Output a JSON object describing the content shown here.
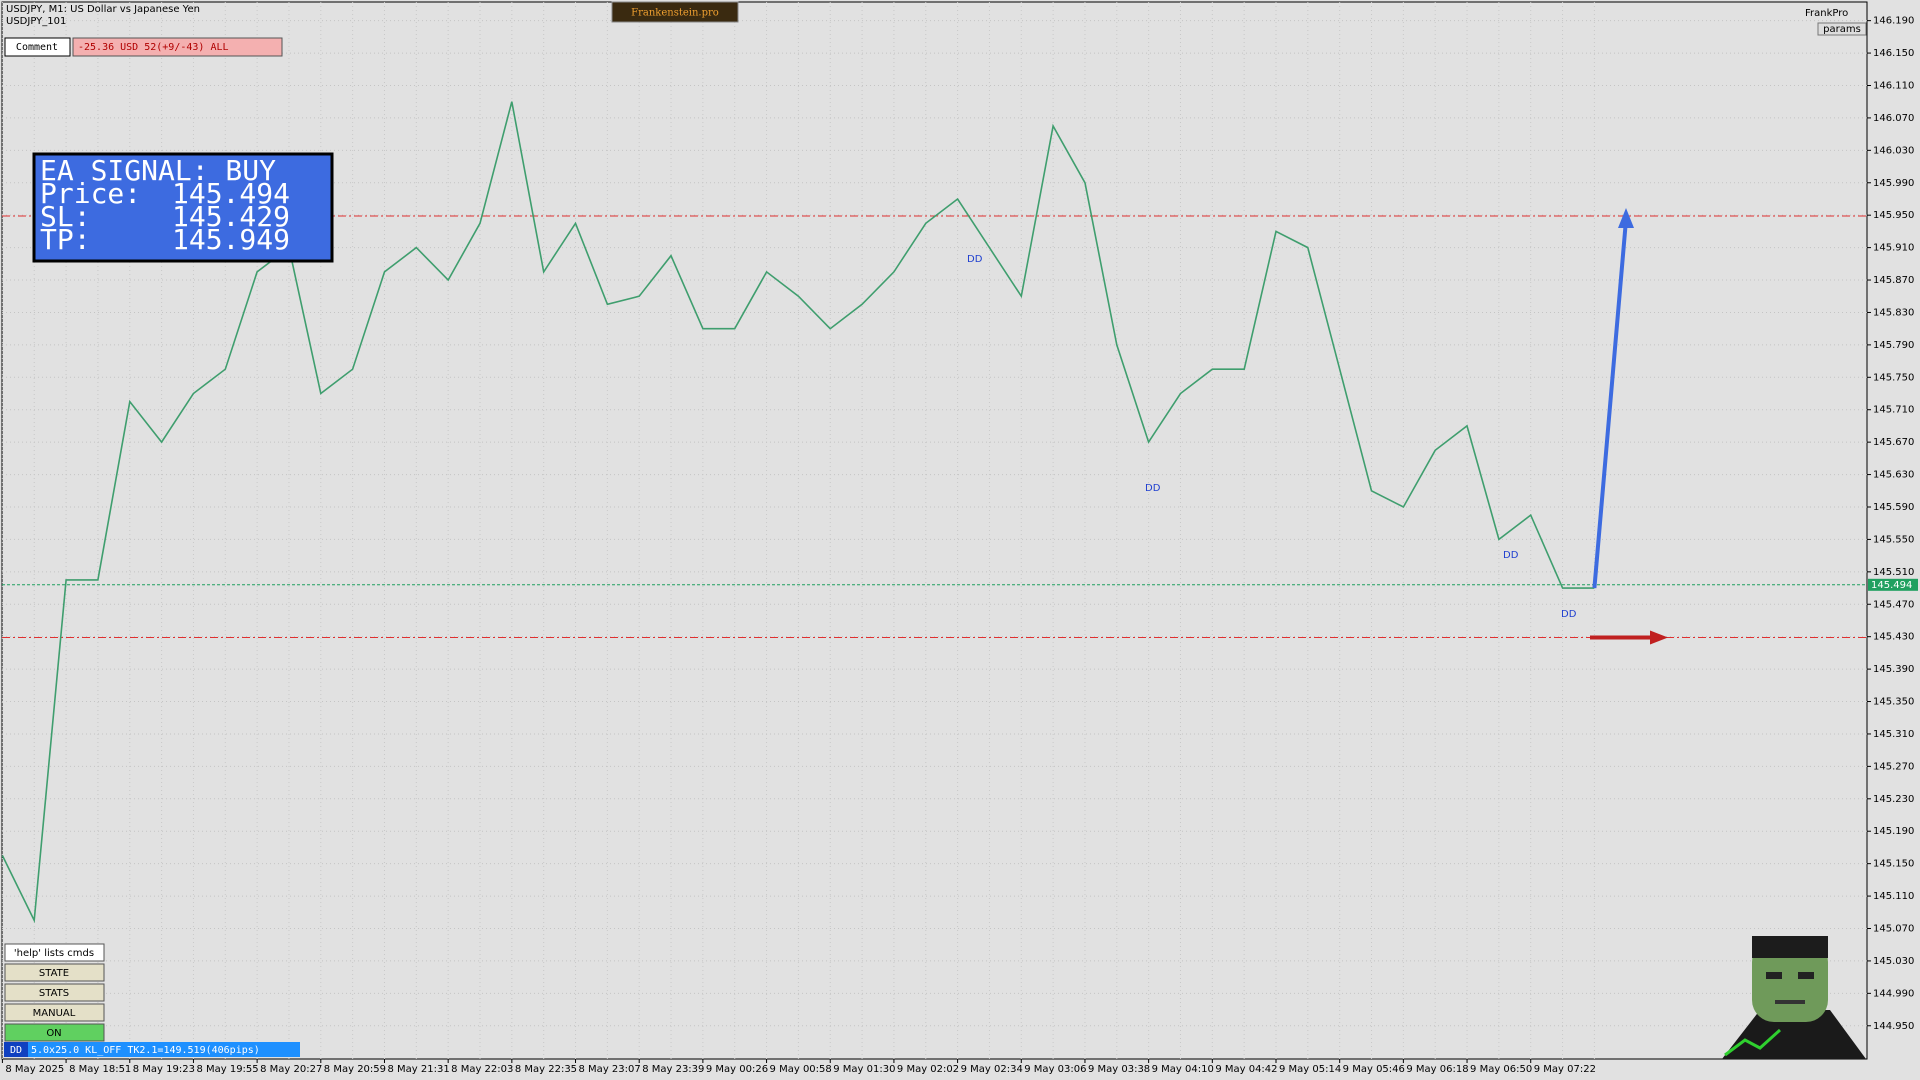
{
  "chart_data": {
    "type": "line",
    "title": "USDJPY, M1:  US Dollar vs Japanese Yen",
    "subtitle": "USDJPY_101",
    "color": "#3f9e6e",
    "categories": [
      "8 May 2025",
      null,
      "8 May 18:51",
      null,
      "8 May 19:23",
      null,
      "8 May 19:55",
      null,
      "8 May 20:27",
      null,
      "8 May 20:59",
      null,
      "8 May 21:31",
      null,
      "8 May 22:03",
      null,
      "8 May 22:35",
      null,
      "8 May 23:07",
      null,
      "8 May 23:39",
      null,
      "9 May 00:26",
      null,
      "9 May 00:58",
      null,
      "9 May 01:30",
      null,
      "9 May 02:02",
      null,
      "9 May 02:34",
      null,
      "9 May 03:06",
      null,
      "9 May 03:38",
      null,
      "9 May 04:10",
      null,
      "9 May 04:42",
      null,
      "9 May 05:14",
      null,
      "9 May 05:46",
      null,
      "9 May 06:18",
      null,
      "9 May 06:50",
      null,
      "9 May 07:22",
      null,
      null
    ],
    "values": [
      145.16,
      145.08,
      145.5,
      145.5,
      145.72,
      145.67,
      145.73,
      145.76,
      145.88,
      145.91,
      145.73,
      145.76,
      145.88,
      145.91,
      145.87,
      145.94,
      146.09,
      145.88,
      145.94,
      145.84,
      145.85,
      145.9,
      145.81,
      145.81,
      145.88,
      145.85,
      145.81,
      145.84,
      145.88,
      145.94,
      145.97,
      145.91,
      145.85,
      146.06,
      145.99,
      145.79,
      145.67,
      145.73,
      145.76,
      145.76,
      145.93,
      145.91,
      145.76,
      145.61,
      145.59,
      145.66,
      145.69,
      145.55,
      145.58,
      145.49,
      145.49
    ],
    "ylim": [
      144.909,
      146.213
    ],
    "yticks": [
      {
        "value": 146.19,
        "label": "146.190"
      },
      {
        "value": 146.15,
        "label": "146.150"
      },
      {
        "value": 146.11,
        "label": "146.110"
      },
      {
        "value": 146.07,
        "label": "146.070"
      },
      {
        "value": 146.03,
        "label": "146.030"
      },
      {
        "value": 145.99,
        "label": "145.990"
      },
      {
        "value": 145.95,
        "label": "145.950"
      },
      {
        "value": 145.91,
        "label": "145.910"
      },
      {
        "value": 145.87,
        "label": "145.870"
      },
      {
        "value": 145.83,
        "label": "145.830"
      },
      {
        "value": 145.79,
        "label": "145.790"
      },
      {
        "value": 145.75,
        "label": "145.750"
      },
      {
        "value": 145.71,
        "label": "145.710"
      },
      {
        "value": 145.67,
        "label": "145.670"
      },
      {
        "value": 145.63,
        "label": "145.630"
      },
      {
        "value": 145.59,
        "label": "145.590"
      },
      {
        "value": 145.55,
        "label": "145.550"
      },
      {
        "value": 145.51,
        "label": "145.510"
      },
      {
        "value": 145.47,
        "label": "145.470"
      },
      {
        "value": 145.43,
        "label": "145.430"
      },
      {
        "value": 145.39,
        "label": "145.390"
      },
      {
        "value": 145.35,
        "label": "145.350"
      },
      {
        "value": 145.31,
        "label": "145.310"
      },
      {
        "value": 145.27,
        "label": "145.270"
      },
      {
        "value": 145.23,
        "label": "145.230"
      },
      {
        "value": 145.19,
        "label": "145.190"
      },
      {
        "value": 145.15,
        "label": "145.150"
      },
      {
        "value": 145.11,
        "label": "145.110"
      },
      {
        "value": 145.07,
        "label": "145.070"
      },
      {
        "value": 145.03,
        "label": "145.030"
      },
      {
        "value": 144.99,
        "label": "144.990"
      },
      {
        "value": 144.95,
        "label": "144.950"
      }
    ],
    "grid": true,
    "annotations": [
      "DD",
      "DD",
      "DD",
      "DD"
    ]
  },
  "signal": {
    "title": "EA SIGNAL: BUY",
    "price_label": "Price:",
    "price": 145.494,
    "sl_label": "SL:",
    "sl": 145.429,
    "tp_label": "TP:",
    "tp": 145.949
  },
  "header": {
    "brand": "Frankenstein.pro",
    "comment_label": "Comment",
    "comment": "-25.36 USD 52(+9/-43) ALL",
    "user": "FrankPro",
    "params": "params"
  },
  "panel": {
    "help": "'help' lists cmds",
    "buttons": [
      "STATE",
      "STATS",
      "MANUAL",
      "ON"
    ]
  },
  "status": {
    "tag": "DD",
    "text": "5.0x25.0 KL_OFF TK2.1=149.519(406pips)"
  }
}
